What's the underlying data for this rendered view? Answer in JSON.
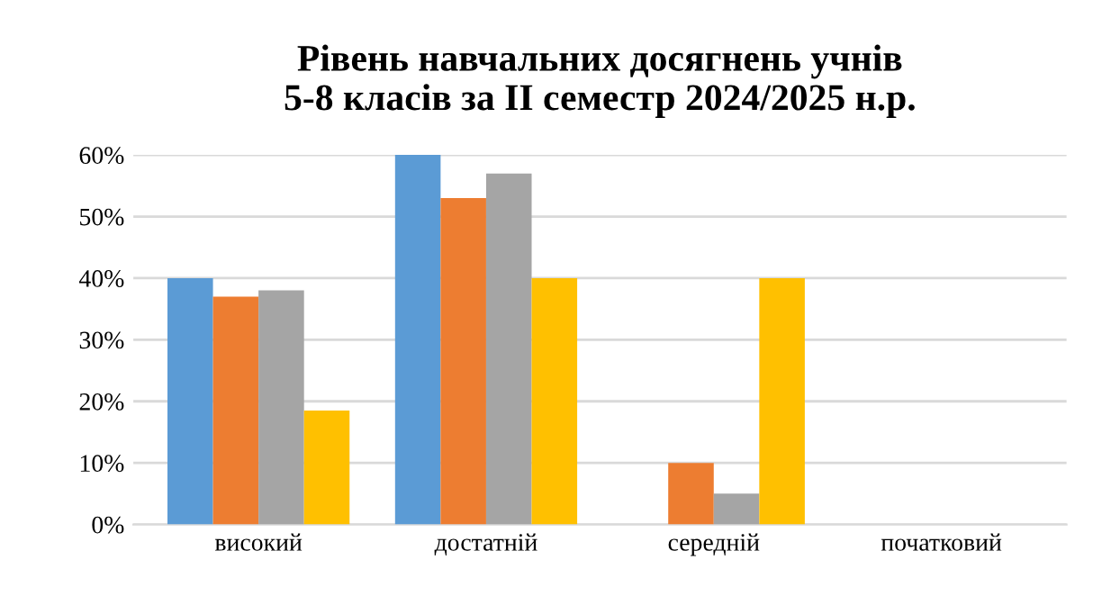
{
  "chart_data": {
    "type": "bar",
    "title": "Рівень навчальних досягнень учнів\n5-8 класів за ІІ семестр 2024/2025 н.р.",
    "categories": [
      "високий",
      "достатній",
      "середній",
      "початковий"
    ],
    "series": [
      {
        "color": "#5b9bd5",
        "values": [
          40,
          60,
          0,
          0
        ]
      },
      {
        "color": "#ed7d31",
        "values": [
          37,
          53,
          10,
          0
        ]
      },
      {
        "color": "#a5a5a5",
        "values": [
          38,
          57,
          5,
          0
        ]
      },
      {
        "color": "#ffc000",
        "values": [
          18.5,
          40,
          40,
          0
        ]
      }
    ],
    "ylim": [
      0,
      60
    ],
    "yticks": [
      {
        "value": 0,
        "label": "0%"
      },
      {
        "value": 10,
        "label": "10%"
      },
      {
        "value": 20,
        "label": "20%"
      },
      {
        "value": 30,
        "label": "30%"
      },
      {
        "value": 40,
        "label": "40%"
      },
      {
        "value": 50,
        "label": "50%"
      },
      {
        "value": 60,
        "label": "60%"
      }
    ],
    "grid": "y"
  }
}
